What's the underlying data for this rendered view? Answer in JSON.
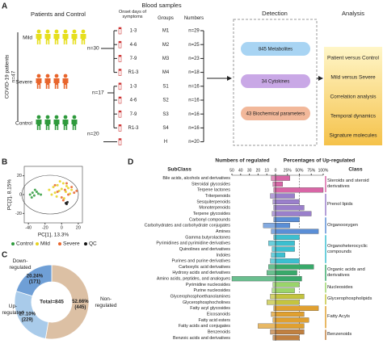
{
  "panel_labels": [
    "A",
    "B",
    "C",
    "D"
  ],
  "diagram": {
    "patients_title": "Patients and Control",
    "cohort_label": "COVID-19 patients",
    "cohort_n": "n=47",
    "groups": [
      {
        "label": "Mild",
        "n": "n=30",
        "color": "#e6df1e"
      },
      {
        "label": "Severe",
        "n": "n=17",
        "color": "#e8652c"
      },
      {
        "label": "Control",
        "n": "n=20",
        "color": "#2e9a3c"
      }
    ],
    "blood_title": "Blood samples",
    "columns": [
      "Onset days of symptoms",
      "Groups",
      "Numbers"
    ],
    "rows": [
      [
        "1-3",
        "M1",
        "n=29"
      ],
      [
        "4-6",
        "M2",
        "n=25"
      ],
      [
        "7-9",
        "M3",
        "n=23"
      ],
      [
        "R1-3",
        "M4",
        "n=18"
      ],
      [
        "1-3",
        "S1",
        "n=16"
      ],
      [
        "4-6",
        "S2",
        "n=16"
      ],
      [
        "7-9",
        "S3",
        "n=16"
      ],
      [
        "R1-3",
        "S4",
        "n=16"
      ],
      [
        null,
        "H",
        "n=20"
      ]
    ],
    "detection_title": "Detection",
    "detection_items": [
      "845 Metabolites",
      "34 Cytokines",
      "43 Biochemical parameters"
    ],
    "analysis_title": "Analysis",
    "analysis_items": [
      "Patient versus Control",
      "Mild versus Severe",
      "Correlation analysis",
      "Temporal dynamics",
      "Signature molecules"
    ]
  },
  "chart_data": [
    {
      "type": "scatter",
      "x_label": "PC[1], 13.3%",
      "y_label": "PC[2], 8.15%",
      "xlim": [
        -45,
        25
      ],
      "xticks": [
        -40,
        -20,
        0,
        20
      ],
      "ylim": [
        -30,
        30
      ],
      "yticks": [
        -20,
        0,
        20
      ],
      "series": [
        {
          "name": "Control",
          "color": "#2e9a3c",
          "x": [
            -38,
            -35,
            -33,
            -30,
            -28,
            -36,
            -32,
            -25
          ],
          "values": [
            0,
            2,
            -1,
            3,
            1,
            -3,
            5,
            0
          ]
        },
        {
          "name": "Mild",
          "color": "#e6d21e",
          "x": [
            -15,
            -10,
            -8,
            -5,
            -3,
            0,
            2,
            5,
            8,
            10,
            -12,
            -6,
            3,
            12,
            -2,
            6
          ],
          "values": [
            5,
            8,
            2,
            10,
            4,
            6,
            12,
            3,
            7,
            1,
            0,
            -2,
            -4,
            5,
            14,
            9
          ]
        },
        {
          "name": "Severe",
          "color": "#e8652c",
          "x": [
            -5,
            0,
            4,
            8,
            12,
            15,
            -8,
            2,
            6,
            18
          ],
          "values": [
            3,
            -3,
            5,
            0,
            8,
            2,
            10,
            -6,
            12,
            4
          ]
        },
        {
          "name": "QC",
          "color": "#111111",
          "x": [
            5,
            6,
            7
          ],
          "values": [
            -9,
            -10,
            -8
          ]
        }
      ]
    },
    {
      "type": "pie",
      "center_label": "Total=845",
      "categories": [
        "Non-regulated",
        "Up-regulated",
        "Down-regulated"
      ],
      "values": [
        52.66,
        27.1,
        20.24
      ],
      "value_labels": [
        "52.66%",
        "27.10%",
        "20.24%"
      ],
      "counts": [
        445,
        229,
        171
      ],
      "count_labels": [
        "(445)",
        "(229)",
        "(171)"
      ],
      "colors": [
        "#dcc0a4",
        "#a9cbea",
        "#6f9fd6"
      ]
    },
    {
      "type": "bar",
      "count_title": "Numbers of regulated",
      "percent_title": "Percentages of Up-regulated",
      "subclass_header": "SubClass",
      "class_header": "Class",
      "count_xlim": [
        50,
        0
      ],
      "count_xticks": [
        50,
        40,
        30,
        20,
        10,
        0
      ],
      "percent_xlim": [
        0,
        100
      ],
      "percent_xticks": [
        {
          "value": 25,
          "label": "25%"
        },
        {
          "value": 50,
          "label": "50%"
        },
        {
          "value": 75,
          "label": "75%"
        },
        {
          "value": 100,
          "label": "100%"
        }
      ],
      "percent_refline": 50,
      "classes": [
        {
          "name": "Steroids and steroid derivatives",
          "color": "#d866a6",
          "subclasses": [
            "Bile acids, alcohols and derivatives",
            "Steroidal glycosides",
            "Terpene lactones"
          ],
          "counts": [
            5,
            3,
            2
          ],
          "percents": [
            30,
            15,
            100
          ]
        },
        {
          "name": "Prenol lipids",
          "color": "#9a7fcb",
          "subclasses": [
            "Triterpenoids",
            "Sesquiterpenoids",
            "Monoterpenoids",
            "Terpene glycosides"
          ],
          "counts": [
            6,
            3,
            2,
            4
          ],
          "percents": [
            40,
            50,
            60,
            75
          ]
        },
        {
          "name": "Organooxygen",
          "color": "#5a8ed6",
          "subclasses": [
            "Carbonyl compounds",
            "Carbohydrates and carbohydrate conjugates",
            "Amines"
          ],
          "counts": [
            2,
            14,
            5
          ],
          "percents": [
            50,
            30,
            90
          ]
        },
        {
          "name": "Organoheterocyclic compounds",
          "color": "#3cbfd0",
          "subclasses": [
            "Gamma butyrolactones",
            "Pyrimidines and pyrimidine derivatives",
            "Quinolines and derivatives",
            "Indoles",
            "Purines and purine derivatives"
          ],
          "counts": [
            2,
            8,
            4,
            5,
            6
          ],
          "percents": [
            50,
            40,
            40,
            20,
            50
          ]
        },
        {
          "name": "Organic acids and derivatives",
          "color": "#38a96a",
          "subclasses": [
            "Carboxylic acid derivatives",
            "Hydroxy acids and derivatives",
            "Amino acids, peptides, and analogues"
          ],
          "counts": [
            8,
            10,
            50
          ],
          "percents": [
            80,
            45,
            55
          ]
        },
        {
          "name": "Nucleosides",
          "color": "#9ad46a",
          "subclasses": [
            "Pyrimidine nucleosides",
            "Purine nucleosides"
          ],
          "counts": [
            3,
            4
          ],
          "percents": [
            50,
            40
          ]
        },
        {
          "name": "Glycerophospholipids",
          "color": "#c4c43e",
          "subclasses": [
            "Glycerophosphoethanolamines",
            "Glycerophosphocholines"
          ],
          "counts": [
            6,
            10
          ],
          "percents": [
            60,
            50
          ]
        },
        {
          "name": "Fatty Acyls",
          "color": "#e0a030",
          "subclasses": [
            "Fatty acyl glycosides",
            "Eicosanoids",
            "Fatty acid esters",
            "Fatty acids and conjugates"
          ],
          "counts": [
            2,
            5,
            3,
            20
          ],
          "percents": [
            90,
            60,
            70,
            60
          ]
        },
        {
          "name": "Benzenoids",
          "color": "#c08040",
          "subclasses": [
            "Benzenoids",
            "Benzoic acids and derivatives"
          ],
          "counts": [
            6,
            3
          ],
          "percents": [
            60,
            50
          ]
        }
      ]
    }
  ]
}
